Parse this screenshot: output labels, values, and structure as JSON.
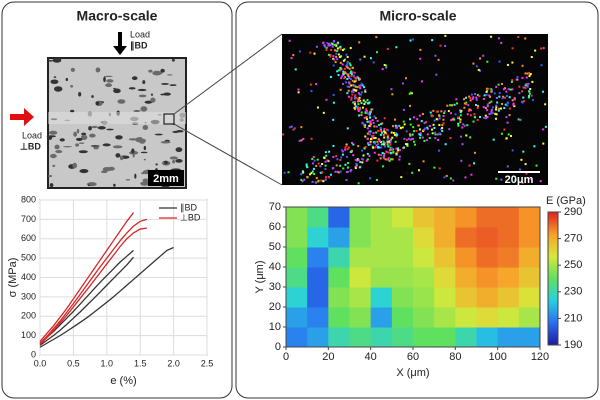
{
  "left_panel": {
    "title": "Macro-scale",
    "load_top": [
      "Load",
      "∥BD"
    ],
    "load_left": [
      "Load",
      "⊥BD"
    ],
    "scale_bar": "2mm"
  },
  "right_panel": {
    "title": "Micro-scale",
    "scale_bar": "20μm"
  },
  "chart_data": [
    {
      "type": "line",
      "x_label": "e (%)",
      "y_label": "σ (MPa)",
      "x": [
        0,
        0.1,
        0.2,
        0.3,
        0.4,
        0.5,
        0.6,
        0.7,
        0.8,
        0.9,
        1.0,
        1.1,
        1.2,
        1.3,
        1.4,
        1.5,
        1.6,
        1.7,
        1.8,
        1.9,
        2.0
      ],
      "series": [
        {
          "name": "∥BD",
          "color": "#333333",
          "values": [
            60,
            90,
            120,
            155,
            190,
            225,
            262,
            300,
            338,
            375,
            410,
            445,
            480,
            510,
            540,
            null,
            null,
            null,
            null,
            null,
            null
          ]
        },
        {
          "color": "#333333",
          "values": [
            50,
            75,
            100,
            128,
            158,
            190,
            222,
            256,
            290,
            325,
            360,
            395,
            430,
            465,
            505,
            null,
            null,
            null,
            null,
            null,
            null
          ]
        },
        {
          "color": "#333333",
          "values": [
            40,
            60,
            80,
            100,
            122,
            145,
            168,
            192,
            218,
            245,
            272,
            300,
            330,
            360,
            390,
            420,
            450,
            480,
            510,
            540,
            555
          ]
        },
        {
          "name": "⊥BD",
          "color": "#d62728",
          "values": [
            70,
            110,
            150,
            195,
            240,
            290,
            340,
            390,
            440,
            490,
            540,
            590,
            640,
            690,
            735,
            null,
            null,
            null,
            null,
            null,
            null
          ]
        },
        {
          "color": "#d62728",
          "values": [
            60,
            95,
            135,
            175,
            220,
            265,
            312,
            360,
            408,
            455,
            500,
            545,
            590,
            630,
            665,
            690,
            700,
            null,
            null,
            null,
            null
          ]
        },
        {
          "color": "#d62728",
          "values": [
            55,
            88,
            125,
            165,
            205,
            248,
            292,
            335,
            380,
            425,
            470,
            515,
            560,
            600,
            630,
            650,
            655,
            null,
            null,
            null,
            null
          ]
        }
      ],
      "xlim": [
        0,
        2.5
      ],
      "xticks": [
        {
          "value": 0,
          "label": "0.0"
        },
        0.5,
        {
          "value": 1,
          "label": "1.0"
        },
        1.5,
        {
          "value": 2,
          "label": "2.0"
        },
        2.5
      ],
      "ylim": [
        0,
        800
      ],
      "yticks": [
        0,
        100,
        200,
        300,
        400,
        500,
        600,
        700,
        800
      ],
      "grid": true
    },
    {
      "type": "heatmap",
      "x_label": "X (μm)",
      "y_label": "Y (μm)",
      "colorbar_label": "E (GPa)",
      "x": [
        5,
        15,
        25,
        35,
        45,
        55,
        65,
        75,
        85,
        95,
        105,
        115
      ],
      "y": [
        5,
        15,
        25,
        35,
        45,
        55,
        65
      ],
      "z": [
        [
          210,
          215,
          230,
          235,
          230,
          235,
          240,
          240,
          230,
          220,
          215,
          215
        ],
        [
          215,
          210,
          240,
          245,
          215,
          240,
          245,
          250,
          255,
          260,
          255,
          250
        ],
        [
          225,
          205,
          245,
          250,
          225,
          245,
          248,
          255,
          265,
          270,
          265,
          258
        ],
        [
          235,
          205,
          240,
          255,
          248,
          248,
          250,
          260,
          270,
          275,
          272,
          265
        ],
        [
          240,
          210,
          230,
          250,
          250,
          250,
          255,
          265,
          275,
          280,
          278,
          270
        ],
        [
          245,
          225,
          215,
          245,
          250,
          250,
          260,
          270,
          280,
          282,
          280,
          275
        ],
        [
          245,
          235,
          205,
          245,
          250,
          255,
          265,
          270,
          275,
          280,
          280,
          275
        ]
      ],
      "colormap": [
        "#1a1aa0",
        "#2a6ff0",
        "#27d0e0",
        "#5fe05f",
        "#d8e83a",
        "#f7a02a",
        "#e02020"
      ],
      "xlim": [
        0,
        120
      ],
      "xticks": [
        0,
        20,
        40,
        60,
        80,
        100,
        120
      ],
      "ylim": [
        0,
        70
      ],
      "yticks": [
        0,
        10,
        20,
        30,
        40,
        50,
        60,
        70
      ],
      "clim": [
        190,
        290
      ],
      "cticks": [
        190,
        210,
        230,
        250,
        270,
        290
      ]
    }
  ]
}
